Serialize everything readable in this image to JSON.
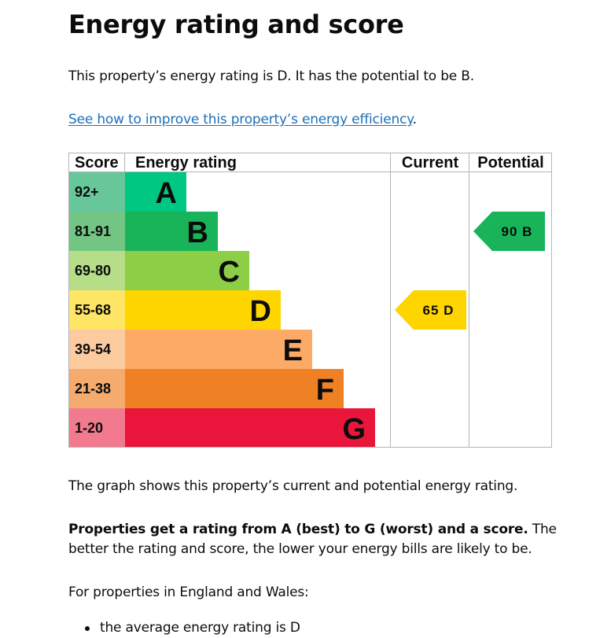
{
  "page": {
    "title": "Energy rating and score",
    "intro": "This property’s energy rating is D. It has the potential to be B.",
    "link_text": "See how to improve this property’s energy efficiency",
    "link_suffix": ".",
    "graph_caption": "The graph shows this property’s current and potential energy rating.",
    "rating_bold": "Properties get a rating from A (best) to G (worst) and a score.",
    "rating_rest": " The better the rating and score, the lower your energy bills are likely to be.",
    "region_intro": "For properties in England and Wales:",
    "bullets": [
      "the average energy rating is D"
    ]
  },
  "chart_data": {
    "type": "table",
    "headers": {
      "score": "Score",
      "rating": "Energy rating",
      "current": "Current",
      "potential": "Potential"
    },
    "bands": [
      {
        "letter": "A",
        "score": "92+",
        "color": "#00c781",
        "score_color": "#68c79a"
      },
      {
        "letter": "B",
        "score": "81-91",
        "color": "#19b459",
        "score_color": "#73c584"
      },
      {
        "letter": "C",
        "score": "69-80",
        "color": "#8dce46",
        "score_color": "#b6dd88"
      },
      {
        "letter": "D",
        "score": "55-68",
        "color": "#ffd500",
        "score_color": "#ffe566"
      },
      {
        "letter": "E",
        "score": "39-54",
        "color": "#fcaa65",
        "score_color": "#fdcba0"
      },
      {
        "letter": "F",
        "score": "21-38",
        "color": "#ef8023",
        "score_color": "#f5ab6e"
      },
      {
        "letter": "G",
        "score": "1-20",
        "color": "#e9153b",
        "score_color": "#f17a8f"
      }
    ],
    "current": {
      "score": 65,
      "band": "D",
      "label": "65  D",
      "color": "#ffd500"
    },
    "potential": {
      "score": 90,
      "band": "B",
      "label": "90  B",
      "color": "#19b459"
    }
  }
}
